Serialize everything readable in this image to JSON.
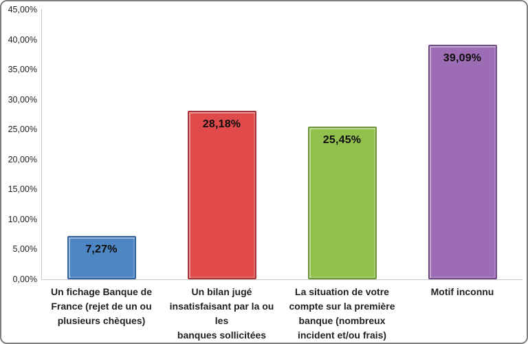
{
  "chart_data": {
    "type": "bar",
    "title": "",
    "xlabel": "",
    "ylabel": "",
    "categories": [
      {
        "label": "Un fichage Banque de France (rejet de un ou plusieurs chèques)",
        "lines": [
          "Un fichage Banque de",
          "France (rejet de un ou",
          "plusieurs chèques)"
        ]
      },
      {
        "label": "Un bilan jugé insatisfaisant par la ou les banques sollicitées",
        "lines": [
          "Un bilan jugé",
          "insatisfaisant par la ou les",
          "banques sollicitées"
        ]
      },
      {
        "label": "La situation de votre compte sur la première banque (nombreux incident et/ou frais)",
        "lines": [
          "La situation de votre",
          "compte sur la première",
          "banque (nombreux",
          "incident et/ou frais)"
        ]
      },
      {
        "label": "Motif inconnu",
        "lines": [
          "Motif inconnu"
        ]
      }
    ],
    "values": [
      7.27,
      28.18,
      25.45,
      39.09
    ],
    "value_labels": [
      "7,27%",
      "28,18%",
      "25,45%",
      "39,09%"
    ],
    "bar_colors": [
      {
        "fill": "#4E86C4",
        "border": "#30639c",
        "name": "blue"
      },
      {
        "fill": "#E04A4B",
        "border": "#a53538",
        "name": "red"
      },
      {
        "fill": "#93C14E",
        "border": "#6d9338",
        "name": "green"
      },
      {
        "fill": "#9C6CB4",
        "border": "#6f4b86",
        "name": "purple"
      }
    ],
    "ylim": [
      0,
      45
    ],
    "ytick_step": 5,
    "yticks": [
      {
        "value": 45,
        "label": "45,00%"
      },
      {
        "value": 40,
        "label": "40,00%"
      },
      {
        "value": 35,
        "label": "35,00%"
      },
      {
        "value": 30,
        "label": "30,00%"
      },
      {
        "value": 25,
        "label": "25,00%"
      },
      {
        "value": 20,
        "label": "20,00%"
      },
      {
        "value": 15,
        "label": "15,00%"
      },
      {
        "value": 10,
        "label": "10,00%"
      },
      {
        "value": 5,
        "label": "5,00%"
      },
      {
        "value": 0,
        "label": "0,00%"
      }
    ],
    "grid": false,
    "legend": null,
    "axis_color": "#c6c6c6",
    "text_color": "#1f1f1f",
    "background": "#ffffff"
  }
}
